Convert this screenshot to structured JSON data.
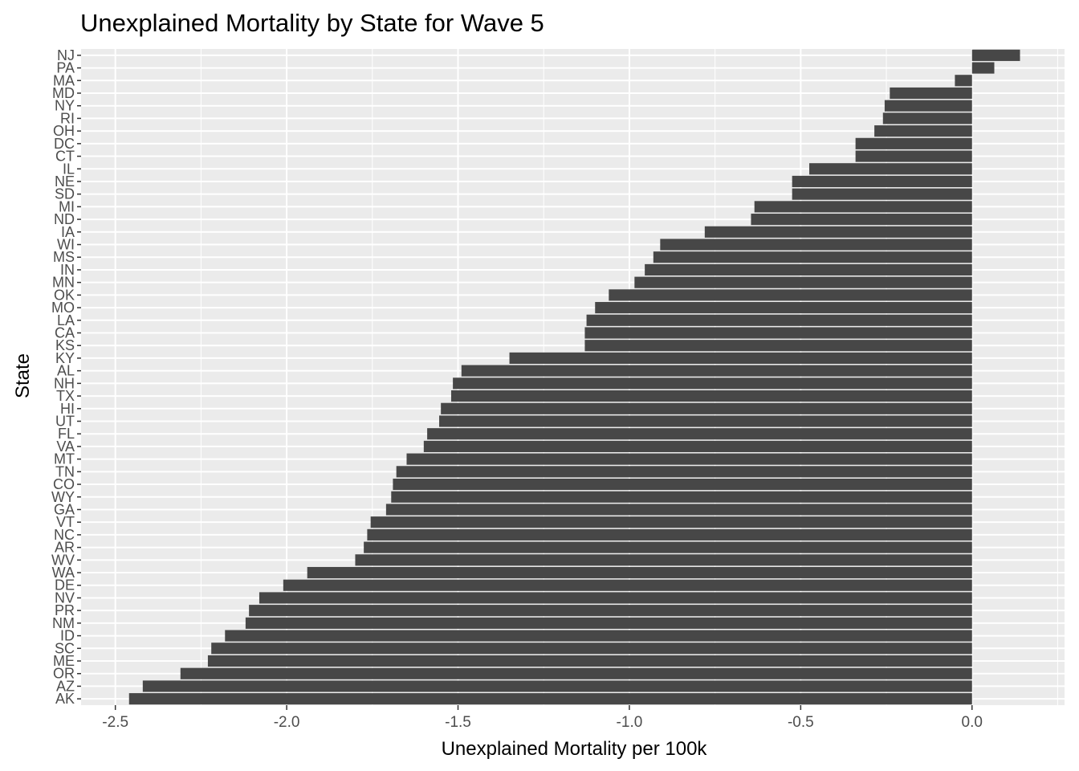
{
  "chart_data": {
    "type": "bar",
    "orientation": "horizontal",
    "title": "Unexplained Mortality by State for Wave 5",
    "xlabel": "Unexplained Mortality per 100k",
    "ylabel": "State",
    "xlim": [
      -2.6,
      0.27
    ],
    "xticks": [
      "-2.5",
      "-2.0",
      "-1.5",
      "-1.0",
      "-0.5",
      "0.0"
    ],
    "xtick_values": [
      -2.5,
      -2.0,
      -1.5,
      -1.0,
      -0.5,
      0.0
    ],
    "grid": true,
    "categories": [
      "NJ",
      "PA",
      "MA",
      "MD",
      "NY",
      "RI",
      "OH",
      "DC",
      "CT",
      "IL",
      "NE",
      "SD",
      "MI",
      "ND",
      "IA",
      "WI",
      "MS",
      "IN",
      "MN",
      "OK",
      "MO",
      "LA",
      "CA",
      "KS",
      "KY",
      "AL",
      "NH",
      "TX",
      "HI",
      "UT",
      "FL",
      "VA",
      "MT",
      "TN",
      "CO",
      "WY",
      "GA",
      "VT",
      "NC",
      "AR",
      "WV",
      "WA",
      "DE",
      "NV",
      "PR",
      "NM",
      "ID",
      "SC",
      "ME",
      "OR",
      "AZ",
      "AK"
    ],
    "values": [
      0.14,
      0.065,
      -0.05,
      -0.24,
      -0.255,
      -0.26,
      -0.285,
      -0.34,
      -0.34,
      -0.475,
      -0.525,
      -0.525,
      -0.635,
      -0.645,
      -0.78,
      -0.91,
      -0.93,
      -0.955,
      -0.985,
      -1.06,
      -1.1,
      -1.125,
      -1.13,
      -1.13,
      -1.35,
      -1.49,
      -1.515,
      -1.52,
      -1.55,
      -1.555,
      -1.59,
      -1.6,
      -1.65,
      -1.68,
      -1.69,
      -1.695,
      -1.71,
      -1.755,
      -1.765,
      -1.775,
      -1.8,
      -1.94,
      -2.01,
      -2.08,
      -2.11,
      -2.12,
      -2.18,
      -2.22,
      -2.23,
      -2.31,
      -2.42,
      -2.46
    ],
    "bar_color": "#474747",
    "panel_color": "#ebebeb",
    "grid_color": "#ffffff"
  }
}
